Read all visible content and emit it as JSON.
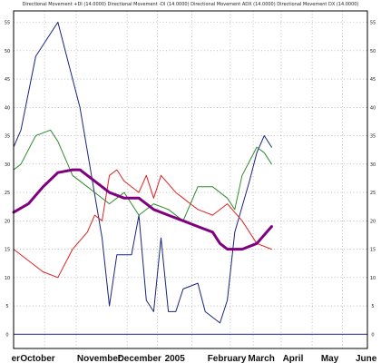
{
  "chart_data": {
    "type": "line",
    "title": "Directional Movement +DI (14.0000) Directional Movement -DI (14.0000) Directional Movement ADX (14.0000) Directional Movement DX (14.0000)",
    "x_tick_labels": [
      "er",
      "October",
      "November",
      "December",
      "2005",
      "February",
      "March",
      "April",
      "May",
      "June"
    ],
    "y_ticks": [
      0,
      5,
      10,
      15,
      20,
      25,
      30,
      35,
      40,
      45,
      50,
      55
    ],
    "ylim": [
      -2.5,
      57
    ],
    "xlim": [
      0,
      48
    ],
    "grid": true,
    "reference_line": {
      "value": 0,
      "color": "#4a4ab8"
    },
    "series": [
      {
        "color": "#1a237e",
        "width": 1,
        "x": [
          0,
          1,
          3,
          6,
          9,
          12,
          13,
          14,
          16,
          17,
          18,
          19,
          20,
          21,
          22,
          23,
          25,
          26,
          28,
          29,
          30,
          32,
          33,
          34,
          35
        ],
        "y": [
          33,
          36,
          49,
          55,
          40,
          17,
          5,
          14,
          14,
          21,
          6,
          4,
          17,
          4,
          4,
          8,
          9,
          4,
          2,
          6,
          18,
          27,
          32,
          35,
          33
        ]
      },
      {
        "color": "#2e8b2e",
        "width": 1,
        "x": [
          0,
          1,
          3,
          5,
          6,
          8,
          10,
          11,
          13,
          15,
          17,
          19,
          21,
          23,
          25,
          27,
          29,
          30,
          31,
          33,
          34,
          35
        ],
        "y": [
          29,
          30,
          35,
          36,
          34,
          28,
          26,
          25,
          23,
          25,
          21,
          23,
          22,
          20,
          26,
          26,
          24,
          22,
          28,
          33,
          32,
          30
        ]
      },
      {
        "color": "#e02020",
        "width": 1,
        "x": [
          0,
          2,
          4,
          6,
          8,
          10,
          11,
          12,
          13,
          14,
          15,
          17,
          18,
          19,
          20,
          22,
          23,
          24,
          25,
          27,
          29,
          31,
          33,
          35
        ],
        "y": [
          15,
          13,
          11,
          10,
          15,
          18,
          21,
          20,
          28,
          29,
          27,
          25,
          28,
          24,
          28,
          25,
          24,
          23,
          22,
          21,
          23,
          20,
          16,
          15
        ]
      },
      {
        "color": "#800080",
        "width": 3,
        "x": [
          0,
          2,
          4,
          6,
          8,
          9,
          11,
          13,
          15,
          17,
          19,
          21,
          23,
          25,
          27,
          28,
          29,
          31,
          33,
          35
        ],
        "y": [
          21.5,
          23,
          26,
          28.5,
          29,
          29,
          27,
          25,
          24,
          24,
          22,
          21,
          20,
          19,
          18,
          16,
          15,
          15,
          16,
          19
        ]
      }
    ]
  }
}
